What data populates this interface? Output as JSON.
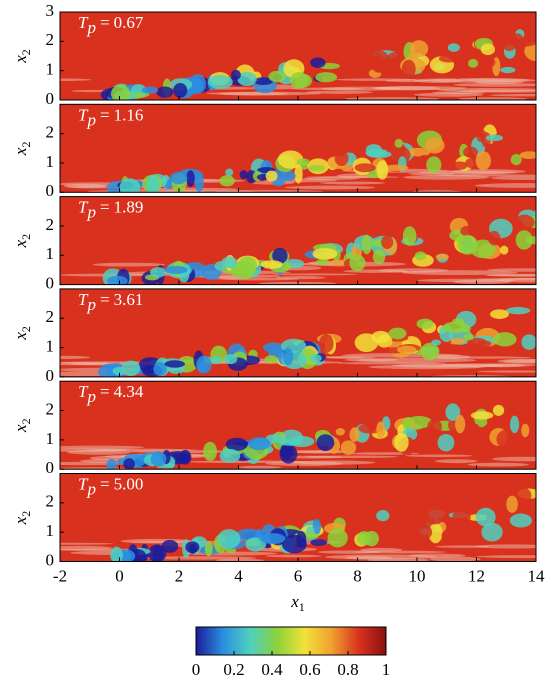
{
  "chart_data": {
    "type": "field",
    "xlabel": {
      "symbol": "x",
      "subscript": "1"
    },
    "ylabel": {
      "symbol": "x",
      "subscript": "2"
    },
    "xlim": [
      -2,
      14
    ],
    "xticks": [
      -2,
      0,
      2,
      4,
      6,
      8,
      10,
      12,
      14
    ],
    "ylim": [
      0,
      3
    ],
    "panel_label": {
      "symbol": "T",
      "subscript": "p",
      "relation": "="
    },
    "panels": [
      {
        "time": "0.67",
        "yticks": [
          0,
          1,
          2,
          3
        ]
      },
      {
        "time": "1.16",
        "yticks": [
          0,
          1,
          2
        ]
      },
      {
        "time": "1.89",
        "yticks": [
          0,
          1,
          2
        ]
      },
      {
        "time": "3.61",
        "yticks": [
          0,
          1,
          2
        ]
      },
      {
        "time": "4.34",
        "yticks": [
          0,
          1,
          2
        ]
      },
      {
        "time": "5.00",
        "yticks": [
          0,
          1,
          2
        ]
      }
    ],
    "colorbar": {
      "clim": [
        0,
        1
      ],
      "ticks": [
        0,
        0.2,
        0.4,
        0.6,
        0.8,
        1
      ],
      "colormap": [
        "#1c1c9a",
        "#2b8fe0",
        "#4fd0c0",
        "#8cd23a",
        "#f2e23a",
        "#f0a030",
        "#d8321e",
        "#8a1010"
      ]
    }
  }
}
